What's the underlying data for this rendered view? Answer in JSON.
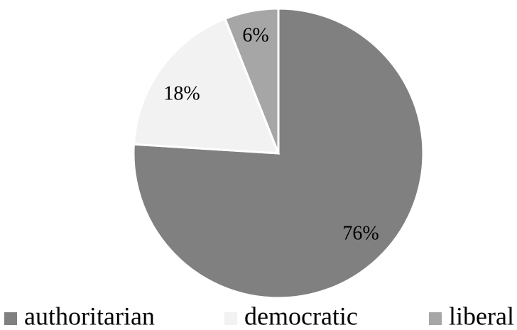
{
  "chart_data": {
    "type": "pie",
    "title": "",
    "slices": [
      {
        "label": "authoritarian",
        "value": 76,
        "display": "76%",
        "color": "#808080"
      },
      {
        "label": "democratic",
        "value": 18,
        "display": "18%",
        "color": "#f2f2f2"
      },
      {
        "label": "liberal",
        "value": 6,
        "display": "6%",
        "color": "#a6a6a6"
      }
    ],
    "start_angle_deg": 0,
    "direction": "clockwise",
    "slice_border_color": "#ffffff",
    "legend_position": "bottom"
  }
}
